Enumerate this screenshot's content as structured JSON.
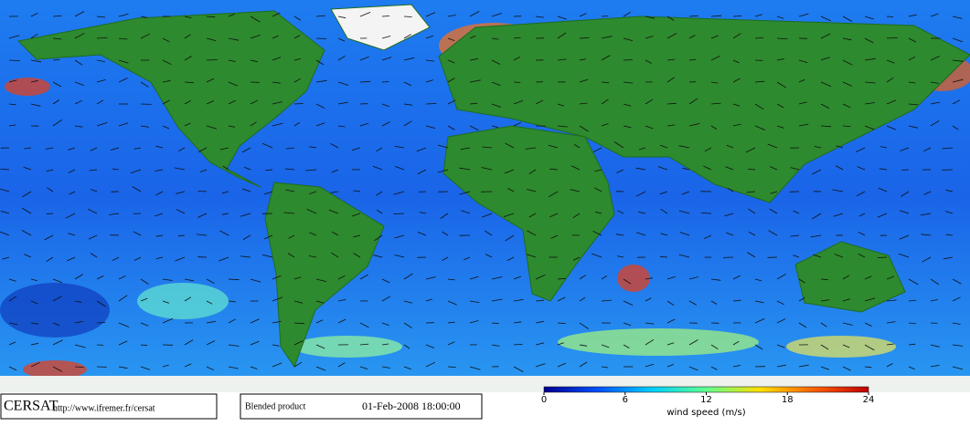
{
  "header": {
    "source": "CERSAT",
    "url": "http://www.ifremer.fr/cersat",
    "product": "Blended product",
    "date": "01-Feb-2008 18:00:00"
  },
  "colorbar": {
    "label": "wind speed (m/s)",
    "range": [
      0,
      24
    ],
    "ticks": [
      0,
      6,
      12,
      18,
      24
    ],
    "colors": [
      "#00008f",
      "#0050ff",
      "#00d0ff",
      "#60ff90",
      "#ffe000",
      "#ff6000",
      "#c00000"
    ]
  }
}
